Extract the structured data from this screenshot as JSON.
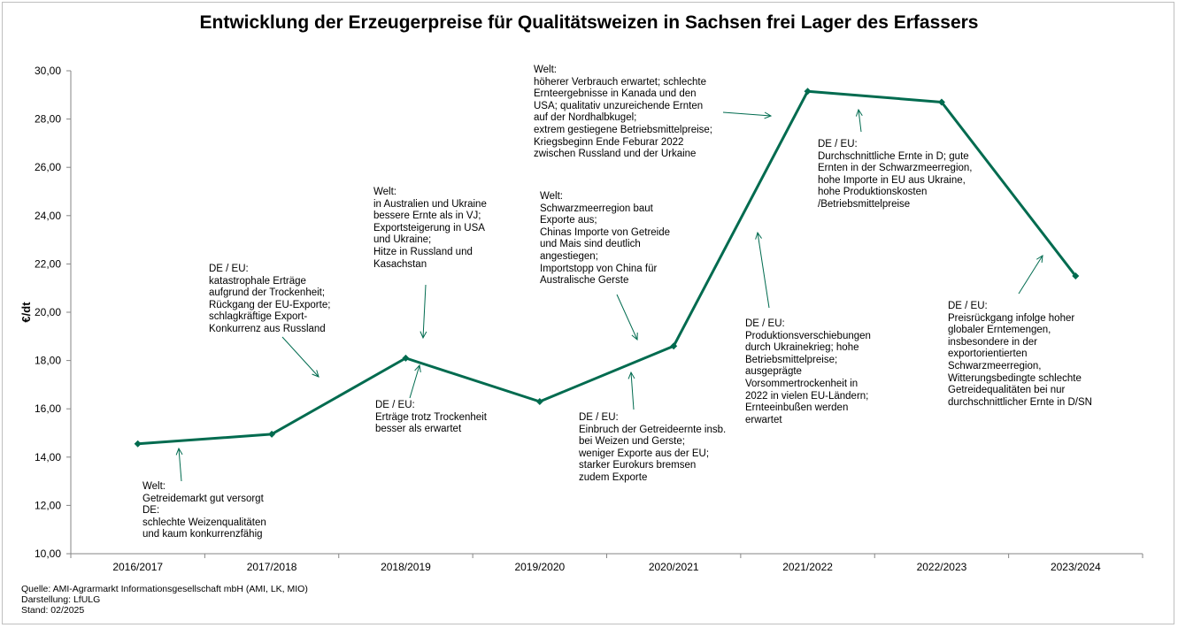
{
  "chart_data": {
    "type": "line",
    "title": "Entwicklung der Erzeugerpreise für Qualitätsweizen in Sachsen frei Lager des Erfassers",
    "ylabel": "€/dt",
    "xlabel": "",
    "categories": [
      "2016/2017",
      "2017/2018",
      "2018/2019",
      "2019/2020",
      "2020/2021",
      "2021/2022",
      "2022/2023",
      "2023/2024"
    ],
    "series": [
      {
        "values": [
          14.55,
          14.95,
          18.1,
          16.3,
          18.6,
          29.15,
          28.7,
          21.5
        ]
      }
    ],
    "yticks": [
      "10,00",
      "12,00",
      "14,00",
      "16,00",
      "18,00",
      "20,00",
      "22,00",
      "24,00",
      "26,00",
      "28,00",
      "30,00"
    ],
    "ylim": [
      10,
      30
    ],
    "grid": false,
    "legend": "none",
    "line_color": "#006b4f",
    "annotations": [
      {
        "id": "ann-2016",
        "lines": [
          "Welt:",
          "Getreidemarkt gut versorgt",
          "DE:",
          "schlechte Weizenqualitäten",
          "und kaum konkurrenzfähig"
        ]
      },
      {
        "id": "ann-2017",
        "lines": [
          "DE / EU:",
          "katastrophale Erträge",
          "aufgrund der Trockenheit;",
          "Rückgang der EU-Exporte;",
          "schlagkräftige Export-",
          "Konkurrenz aus Russland"
        ]
      },
      {
        "id": "ann-2018-welt",
        "lines": [
          "Welt:",
          "in Australien und Ukraine",
          "bessere Ernte als in VJ;",
          "Exportsteigerung in USA",
          "und Ukraine;",
          "Hitze in Russland und",
          "Kasachstan"
        ]
      },
      {
        "id": "ann-2018-de",
        "lines": [
          "DE / EU:",
          "Erträge trotz Trockenheit",
          "besser als erwartet"
        ]
      },
      {
        "id": "ann-2019",
        "lines": [
          "Welt:",
          "Schwarzmeerregion baut",
          "Exporte aus;",
          "Chinas Importe von Getreide",
          "und Mais sind deutlich",
          "angestiegen;",
          "Importstopp von China für",
          "Australische Gerste"
        ]
      },
      {
        "id": "ann-2020",
        "lines": [
          "DE / EU:",
          "Einbruch der Getreideernte insb.",
          "bei Weizen und Gerste;",
          "weniger Exporte aus der EU;",
          "starker Eurokurs bremsen",
          "zudem Exporte"
        ]
      },
      {
        "id": "ann-2021-welt",
        "lines": [
          "Welt:",
          "höherer Verbrauch erwartet; schlechte",
          "Ernteergebnisse in Kanada und den",
          "USA; qualitativ unzureichende Ernten",
          "auf der Nordhalbkugel;",
          "extrem gestiegene Betriebsmittelpreise;",
          "Kriegsbeginn Ende Feburar 2022",
          "zwischen Russland und der Urkaine"
        ]
      },
      {
        "id": "ann-2021-de",
        "lines": [
          "DE / EU:",
          "Produktionsverschiebungen",
          "durch Ukrainekrieg; hohe",
          "Betriebsmittelpreise;",
          "ausgeprägte",
          "Vorsommertrockenheit in",
          "2022 in vielen EU-Ländern;",
          "Ernteeinbußen werden",
          "erwartet"
        ]
      },
      {
        "id": "ann-2022",
        "lines": [
          "DE / EU:",
          "Durchschnittliche Ernte in D; gute",
          "Ernten in der Schwarzmeerregion,",
          "hohe Importe in EU aus Ukraine,",
          "hohe Produktionskosten",
          "/Betriebsmittelpreise"
        ]
      },
      {
        "id": "ann-2023",
        "lines": [
          "DE / EU:",
          "Preisrückgang infolge hoher",
          "globaler Erntemengen,",
          "insbesondere in der",
          "exportorientierten",
          "Schwarzmeerregion,",
          "Witterungsbedingte schlechte",
          "Getreidequalitäten bei nur",
          "durchschnittlicher Ernte in D/SN"
        ]
      }
    ]
  },
  "source": {
    "line1": "Quelle: AMI-Agrarmarkt Informationsgesellschaft mbH (AMI, LK, MIO)",
    "line2": "Darstellung: LfULG",
    "line3": "Stand: 02/2025"
  }
}
